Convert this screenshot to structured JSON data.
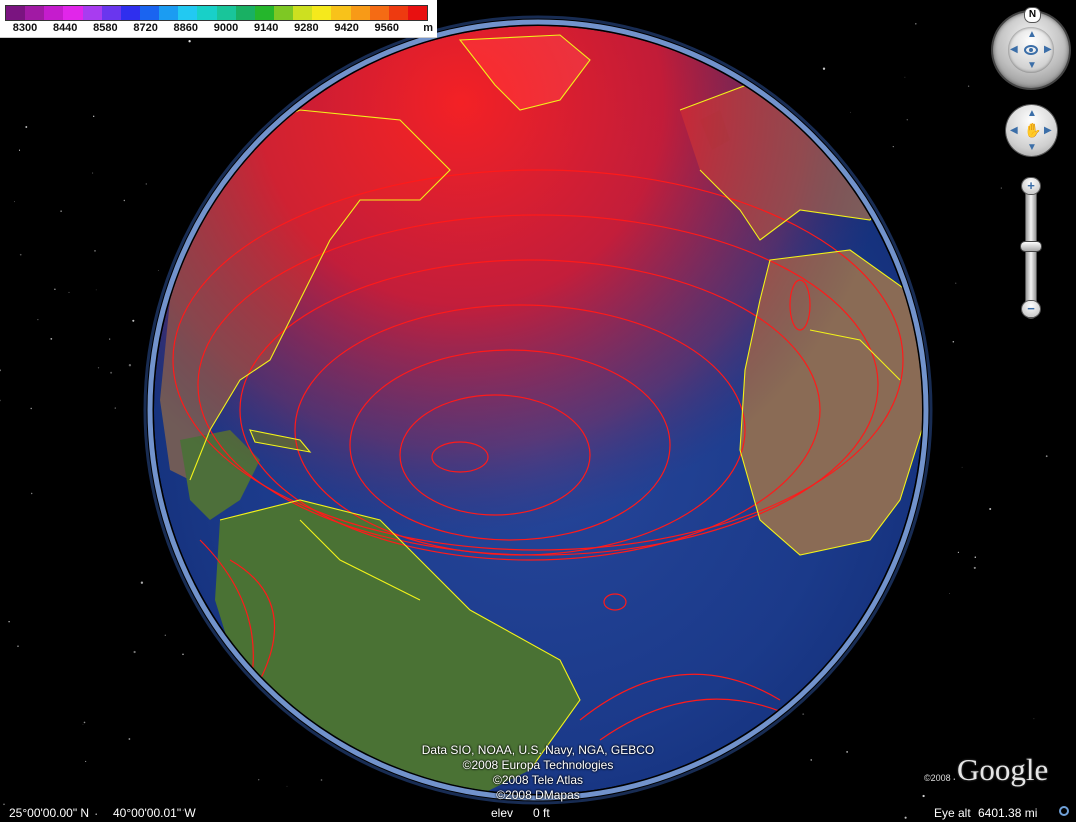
{
  "legend": {
    "colors": [
      "#7a1480",
      "#a11aa4",
      "#c51ccd",
      "#e126ea",
      "#a83cf0",
      "#6a36ee",
      "#2f2fee",
      "#1a64f0",
      "#1b9cf2",
      "#22c9f2",
      "#18d0c8",
      "#19c59a",
      "#19b063",
      "#25b62c",
      "#7ec824",
      "#cde020",
      "#f5e91c",
      "#f8c21a",
      "#f89a17",
      "#f56b14",
      "#ee3a10",
      "#e81010"
    ],
    "tick_labels": [
      "8300",
      "8440",
      "8580",
      "8720",
      "8860",
      "9000",
      "9140",
      "9280",
      "9420",
      "9560"
    ],
    "unit": "m"
  },
  "navigation": {
    "north_label": "N",
    "look_control": "look-joystick",
    "move_control": "move-joystick",
    "zoom_in_label": "+",
    "zoom_out_label": "−"
  },
  "attribution": {
    "lines": [
      "Data SIO, NOAA, U.S. Navy, NGA, GEBCO",
      "©2008 Europa Technologies",
      "©2008 Tele Atlas",
      "©2008 DMapas"
    ]
  },
  "branding": {
    "year": "©2008",
    "logo": "Google"
  },
  "status_bar": {
    "latitude": "25°00'00.00\" N",
    "longitude": "40°00'00.01\" W",
    "elev_label": "elev",
    "elev_value": "0 ft",
    "eye_alt_label": "Eye alt",
    "eye_alt_value": "6401.38 mi"
  },
  "colors": {
    "ocean": "#1f3f8f",
    "contour": "#ff1a1a",
    "coastline": "#f2f21a",
    "land": "#4f7a3a"
  }
}
